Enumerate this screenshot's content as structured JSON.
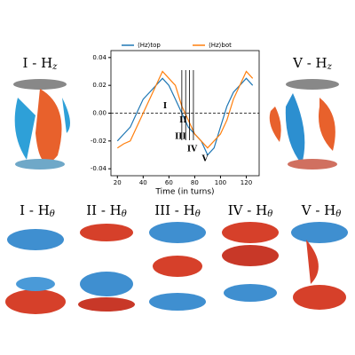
{
  "chart_data": {
    "type": "line",
    "xlabel": "Time (in turns)",
    "x": [
      20,
      25,
      30,
      35,
      40,
      45,
      50,
      55,
      60,
      65,
      70,
      75,
      80,
      85,
      90,
      95,
      100,
      105,
      110,
      115,
      120,
      125
    ],
    "series": [
      {
        "name": "⟨Hz⟩top",
        "color": "#1f77b4",
        "values": [
          -0.02,
          -0.015,
          -0.01,
          0.0,
          0.01,
          0.015,
          0.02,
          0.025,
          0.02,
          0.01,
          0.0,
          -0.01,
          -0.015,
          -0.02,
          -0.03,
          -0.025,
          -0.01,
          0.005,
          0.015,
          0.02,
          0.025,
          0.02
        ]
      },
      {
        "name": "⟨Hz⟩bot",
        "color": "#ff7f0e",
        "values": [
          -0.025,
          -0.022,
          -0.02,
          -0.01,
          0.0,
          0.01,
          0.02,
          0.03,
          0.025,
          0.02,
          0.005,
          -0.005,
          -0.015,
          -0.02,
          -0.025,
          -0.02,
          -0.015,
          -0.005,
          0.01,
          0.02,
          0.03,
          0.025
        ]
      }
    ],
    "xlim": [
      15,
      130
    ],
    "xticks": [
      20,
      40,
      60,
      80,
      100,
      120
    ],
    "ylim": [
      -0.045,
      0.045
    ],
    "yticks": [
      -0.04,
      -0.02,
      {
        "value": 0,
        "label": "0.00"
      },
      0.02,
      0.04
    ],
    "hline": 0,
    "vlines": [
      70,
      73,
      76,
      79
    ],
    "annotations": [
      {
        "text": "I",
        "x": 57,
        "y": 0.005
      },
      {
        "text": "II",
        "x": 71,
        "y": -0.005
      },
      {
        "text": "III",
        "x": 69,
        "y": -0.017
      },
      {
        "text": "IV",
        "x": 78,
        "y": -0.026
      },
      {
        "text": "V",
        "x": 88,
        "y": -0.033
      }
    ],
    "legend": "top"
  },
  "panels": [
    {
      "prefix": "I - H",
      "sub": "z"
    },
    {
      "prefix": "V - H",
      "sub": "z"
    },
    {
      "prefix": "I - H",
      "sub": "θ"
    },
    {
      "prefix": "II - H",
      "sub": "θ"
    },
    {
      "prefix": "III - H",
      "sub": "θ"
    },
    {
      "prefix": "IV - H",
      "sub": "θ"
    },
    {
      "prefix": "V - H",
      "sub": "θ"
    }
  ]
}
